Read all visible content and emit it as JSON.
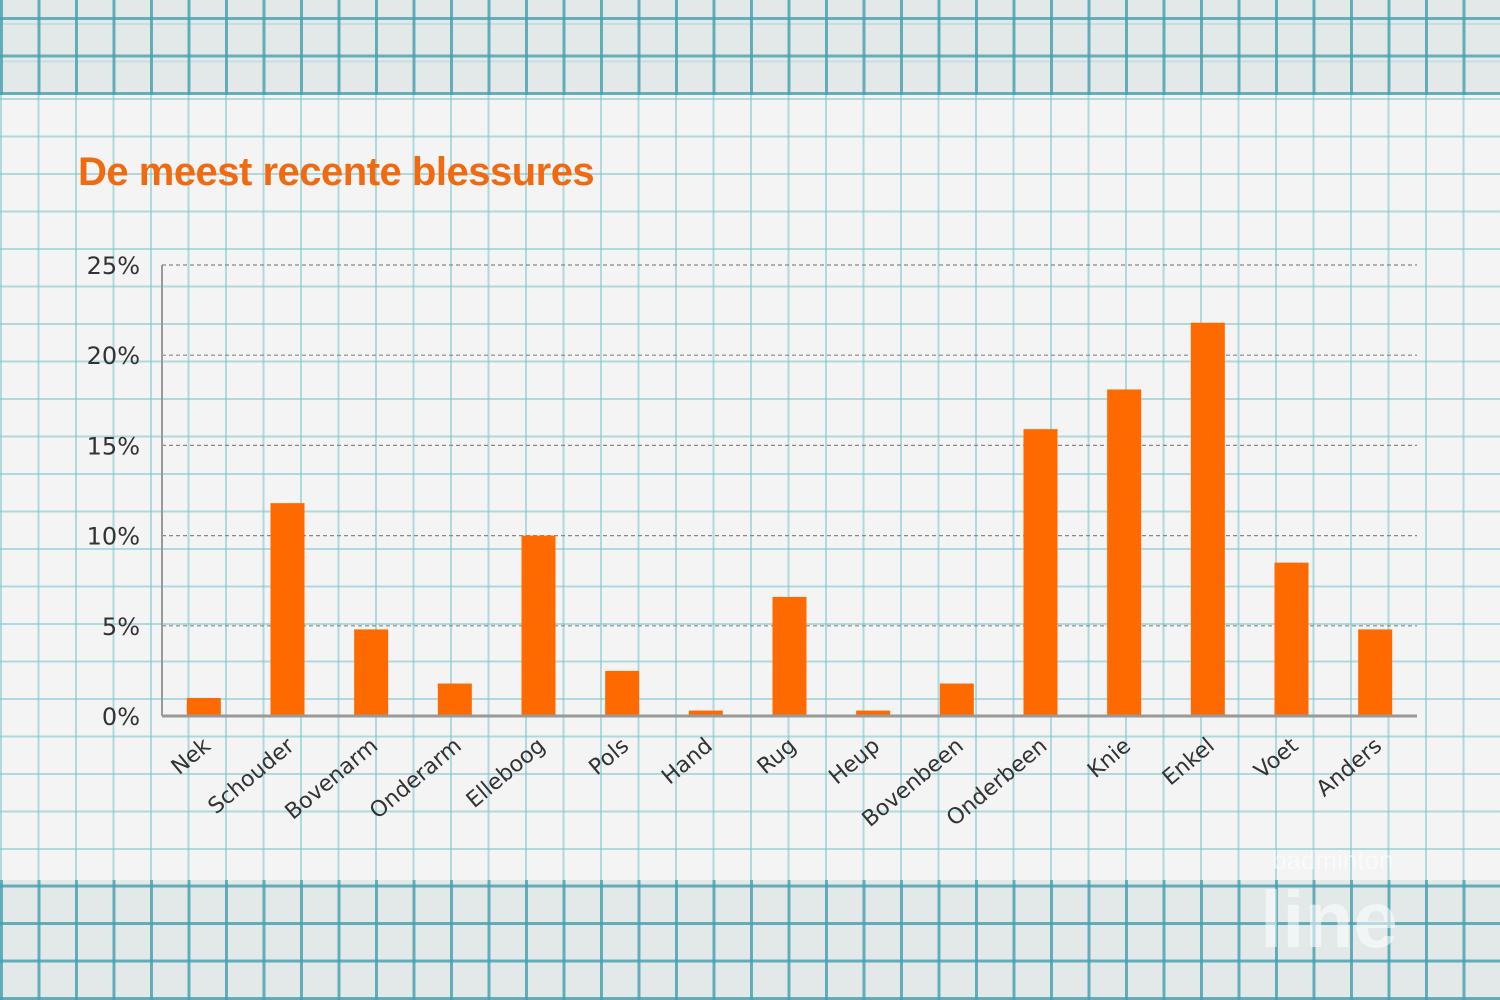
{
  "chart_data": {
    "type": "bar",
    "title": "De meest recente blessures",
    "xlabel": "",
    "ylabel": "",
    "ylim": [
      0,
      25
    ],
    "yticks": [
      "0%",
      "5%",
      "10%",
      "15%",
      "20%",
      "25%"
    ],
    "grid": true,
    "categories": [
      "Nek",
      "Schouder",
      "Bovenarm",
      "Onderarm",
      "Elleboog",
      "Pols",
      "Hand",
      "Rug",
      "Heup",
      "Bovenbeen",
      "Onderbeen",
      "Knie",
      "Enkel",
      "Voet",
      "Anders"
    ],
    "values": [
      1.0,
      11.8,
      4.8,
      1.8,
      10.0,
      2.5,
      0.3,
      6.6,
      0.3,
      1.8,
      15.9,
      18.1,
      21.8,
      8.5,
      4.8
    ],
    "bar_color": "#ff6a00",
    "title_color": "#f26a0f"
  },
  "watermark": {
    "line1": "badminton",
    "line2": "line"
  }
}
